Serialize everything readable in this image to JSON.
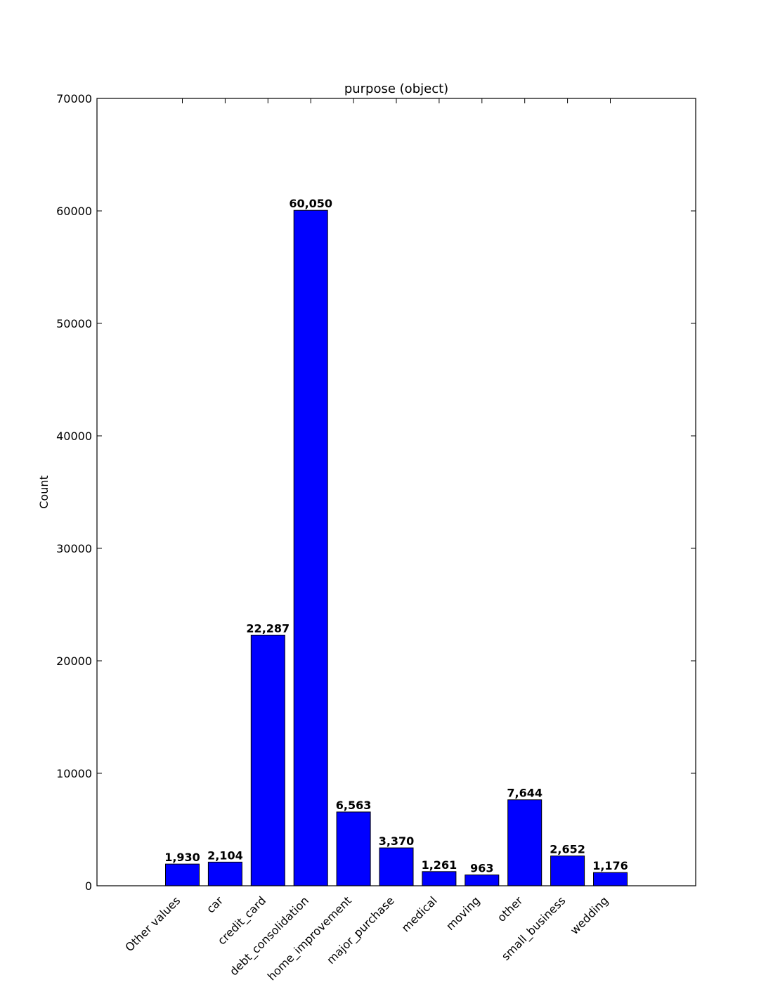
{
  "chart_data": {
    "type": "bar",
    "title": "purpose (object)",
    "xlabel": "",
    "ylabel": "Count",
    "ylim": [
      0,
      70000
    ],
    "yticks": [
      0,
      10000,
      20000,
      30000,
      40000,
      50000,
      60000,
      70000
    ],
    "ytick_labels": [
      "0",
      "10000",
      "20000",
      "30000",
      "40000",
      "50000",
      "60000",
      "70000"
    ],
    "categories": [
      "Other values",
      "car",
      "credit_card",
      "debt_consolidation",
      "home_improvement",
      "major_purchase",
      "medical",
      "moving",
      "other",
      "small_business",
      "wedding"
    ],
    "values": [
      1930,
      2104,
      22287,
      60050,
      6563,
      3370,
      1261,
      963,
      7644,
      2652,
      1176
    ],
    "value_labels": [
      "1,930",
      "2,104",
      "22,287",
      "60,050",
      "6,563",
      "3,370",
      "1,261",
      "963",
      "7,644",
      "2,652",
      "1,176"
    ],
    "bar_color": "#0000ff",
    "edge_color": "#000000",
    "grid": false,
    "legend": "none"
  }
}
